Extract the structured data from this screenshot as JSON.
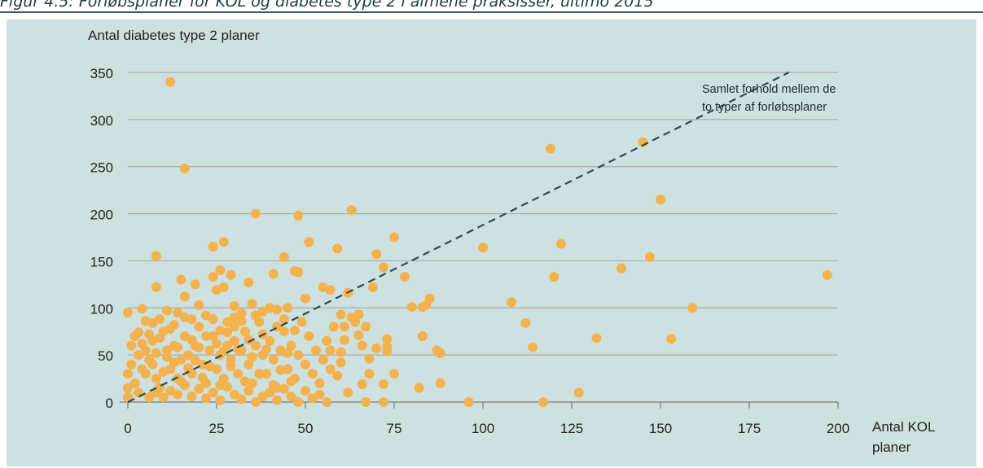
{
  "figure_title": "Figur 4.5: Forløbsplaner for KOL og diabetes type 2 i almene praksisser, ultimo 2015",
  "chart_data": {
    "type": "scatter",
    "ylabel": "Antal diabetes type 2 planer",
    "xlabel": "Antal KOL planer",
    "xlabel_lines": [
      "Antal KOL",
      "planer"
    ],
    "xlim": [
      0,
      200
    ],
    "ylim": [
      0,
      350
    ],
    "xticks": [
      0,
      25,
      50,
      75,
      100,
      125,
      150,
      175,
      200
    ],
    "yticks": [
      0,
      50,
      100,
      150,
      200,
      250,
      300,
      350
    ],
    "grid": "horizontal",
    "point_color": "#f3b24e",
    "line_color": "#2e4a4f",
    "reference_line": {
      "slope": 1.88,
      "style": "dashed",
      "label_lines": [
        "Samlet forhold mellem de",
        "to typer af forløbsplaner"
      ]
    },
    "points": [
      [
        12,
        340
      ],
      [
        16,
        248
      ],
      [
        36,
        200
      ],
      [
        48,
        198
      ],
      [
        63,
        204
      ],
      [
        27,
        170
      ],
      [
        24,
        165
      ],
      [
        51,
        170
      ],
      [
        59,
        163
      ],
      [
        44,
        154
      ],
      [
        8,
        155
      ],
      [
        4,
        99
      ],
      [
        8,
        122
      ],
      [
        19,
        125
      ],
      [
        15,
        130
      ],
      [
        26,
        140
      ],
      [
        24,
        133
      ],
      [
        27,
        122
      ],
      [
        25,
        119
      ],
      [
        29,
        135
      ],
      [
        34,
        127
      ],
      [
        41,
        136
      ],
      [
        48,
        138
      ],
      [
        47,
        139
      ],
      [
        55,
        122
      ],
      [
        57,
        119
      ],
      [
        62,
        116
      ],
      [
        70,
        157
      ],
      [
        75,
        175
      ],
      [
        72,
        143
      ],
      [
        69,
        122
      ],
      [
        78,
        133
      ],
      [
        80,
        101
      ],
      [
        83,
        101
      ],
      [
        85,
        110
      ],
      [
        84,
        103
      ],
      [
        60,
        93
      ],
      [
        63,
        90
      ],
      [
        64,
        85
      ],
      [
        65,
        93
      ],
      [
        61,
        80
      ],
      [
        67,
        80
      ],
      [
        65,
        71
      ],
      [
        66,
        60
      ],
      [
        57,
        55
      ],
      [
        60,
        53
      ],
      [
        70,
        57
      ],
      [
        73,
        67
      ],
      [
        73,
        59
      ],
      [
        73,
        54
      ],
      [
        75,
        30
      ],
      [
        72,
        19
      ],
      [
        72,
        0
      ],
      [
        68,
        46
      ],
      [
        68,
        30
      ],
      [
        66,
        19
      ],
      [
        67,
        0
      ],
      [
        56,
        0
      ],
      [
        83,
        70
      ],
      [
        82,
        15
      ],
      [
        88,
        20
      ],
      [
        87,
        55
      ],
      [
        88,
        52
      ],
      [
        96,
        0
      ],
      [
        100,
        164
      ],
      [
        108,
        106
      ],
      [
        112,
        84
      ],
      [
        114,
        58
      ],
      [
        117,
        0
      ],
      [
        119,
        269
      ],
      [
        120,
        133
      ],
      [
        122,
        168
      ],
      [
        127,
        10
      ],
      [
        132,
        68
      ],
      [
        139,
        142
      ],
      [
        145,
        276
      ],
      [
        147,
        154
      ],
      [
        150,
        215
      ],
      [
        153,
        67
      ],
      [
        159,
        100
      ],
      [
        197,
        135
      ],
      [
        50,
        110
      ],
      [
        45,
        100
      ],
      [
        42,
        98
      ],
      [
        38,
        96
      ],
      [
        35,
        104
      ],
      [
        32,
        94
      ],
      [
        30,
        90
      ],
      [
        30,
        80
      ],
      [
        28,
        85
      ],
      [
        26,
        76
      ],
      [
        22,
        92
      ],
      [
        20,
        103
      ],
      [
        18,
        88
      ],
      [
        16,
        112
      ],
      [
        14,
        95
      ],
      [
        13,
        82
      ],
      [
        11,
        97
      ],
      [
        9,
        88
      ],
      [
        7,
        84
      ],
      [
        5,
        86
      ],
      [
        3,
        74
      ],
      [
        2,
        70
      ],
      [
        1,
        60
      ],
      [
        0,
        95
      ],
      [
        1,
        40
      ],
      [
        0,
        30
      ],
      [
        0,
        15
      ],
      [
        0,
        5
      ],
      [
        2,
        20
      ],
      [
        3,
        10
      ],
      [
        4,
        35
      ],
      [
        5,
        55
      ],
      [
        6,
        45
      ],
      [
        7,
        65
      ],
      [
        8,
        25
      ],
      [
        9,
        15
      ],
      [
        10,
        75
      ],
      [
        11,
        55
      ],
      [
        12,
        35
      ],
      [
        13,
        60
      ],
      [
        14,
        25
      ],
      [
        15,
        45
      ],
      [
        16,
        70
      ],
      [
        17,
        50
      ],
      [
        18,
        30
      ],
      [
        19,
        60
      ],
      [
        20,
        80
      ],
      [
        21,
        40
      ],
      [
        22,
        20
      ],
      [
        23,
        55
      ],
      [
        24,
        70
      ],
      [
        25,
        35
      ],
      [
        26,
        50
      ],
      [
        27,
        25
      ],
      [
        28,
        60
      ],
      [
        29,
        45
      ],
      [
        30,
        65
      ],
      [
        31,
        30
      ],
      [
        32,
        55
      ],
      [
        33,
        75
      ],
      [
        34,
        40
      ],
      [
        35,
        20
      ],
      [
        36,
        60
      ],
      [
        37,
        85
      ],
      [
        38,
        50
      ],
      [
        39,
        30
      ],
      [
        40,
        65
      ],
      [
        41,
        45
      ],
      [
        42,
        15
      ],
      [
        43,
        55
      ],
      [
        44,
        75
      ],
      [
        45,
        35
      ],
      [
        46,
        60
      ],
      [
        47,
        25
      ],
      [
        48,
        50
      ],
      [
        49,
        85
      ],
      [
        50,
        40
      ],
      [
        51,
        70
      ],
      [
        52,
        30
      ],
      [
        53,
        55
      ],
      [
        54,
        20
      ],
      [
        55,
        45
      ],
      [
        56,
        65
      ],
      [
        57,
        35
      ],
      [
        58,
        80
      ],
      [
        59,
        28
      ],
      [
        60,
        42
      ],
      [
        61,
        66
      ],
      [
        62,
        10
      ],
      [
        6,
        5
      ],
      [
        8,
        10
      ],
      [
        10,
        5
      ],
      [
        12,
        12
      ],
      [
        14,
        8
      ],
      [
        16,
        18
      ],
      [
        18,
        6
      ],
      [
        20,
        14
      ],
      [
        22,
        4
      ],
      [
        24,
        10
      ],
      [
        26,
        2
      ],
      [
        28,
        16
      ],
      [
        30,
        8
      ],
      [
        32,
        3
      ],
      [
        34,
        12
      ],
      [
        36,
        0
      ],
      [
        38,
        6
      ],
      [
        40,
        10
      ],
      [
        42,
        2
      ],
      [
        44,
        14
      ],
      [
        46,
        6
      ],
      [
        48,
        0
      ],
      [
        50,
        12
      ],
      [
        52,
        4
      ],
      [
        54,
        8
      ],
      [
        3,
        50
      ],
      [
        4,
        62
      ],
      [
        5,
        30
      ],
      [
        6,
        72
      ],
      [
        7,
        40
      ],
      [
        8,
        52
      ],
      [
        9,
        68
      ],
      [
        10,
        32
      ],
      [
        11,
        48
      ],
      [
        12,
        78
      ],
      [
        13,
        42
      ],
      [
        14,
        58
      ],
      [
        15,
        22
      ],
      [
        16,
        90
      ],
      [
        17,
        36
      ],
      [
        18,
        66
      ],
      [
        19,
        44
      ],
      [
        20,
        58
      ],
      [
        21,
        26
      ],
      [
        22,
        70
      ],
      [
        23,
        38
      ],
      [
        24,
        88
      ],
      [
        25,
        62
      ],
      [
        26,
        18
      ],
      [
        27,
        54
      ],
      [
        28,
        74
      ],
      [
        29,
        38
      ],
      [
        30,
        102
      ],
      [
        31,
        56
      ],
      [
        32,
        86
      ],
      [
        33,
        22
      ],
      [
        34,
        66
      ],
      [
        35,
        48
      ],
      [
        36,
        92
      ],
      [
        37,
        30
      ],
      [
        38,
        72
      ],
      [
        39,
        56
      ],
      [
        40,
        100
      ],
      [
        41,
        18
      ],
      [
        42,
        80
      ],
      [
        43,
        34
      ],
      [
        44,
        88
      ],
      [
        45,
        52
      ],
      [
        46,
        22
      ],
      [
        47,
        76
      ]
    ]
  }
}
